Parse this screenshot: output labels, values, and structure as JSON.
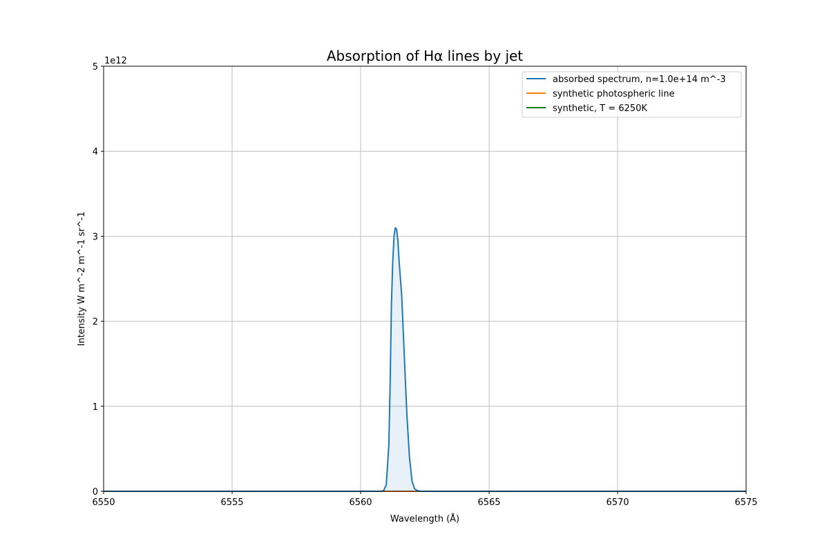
{
  "chart_data": {
    "type": "line",
    "title": "Absorption of Hα lines by jet",
    "xlabel": "Wavelength (Å)",
    "ylabel": "Intensity W m^-2 m^-1 sr^-1",
    "y_offset_text": "1e12",
    "xlim": [
      6550,
      6575
    ],
    "ylim": [
      0,
      5
    ],
    "y_scale_factor": 1000000000000.0,
    "x_ticks": [
      6550,
      6555,
      6560,
      6565,
      6570,
      6575
    ],
    "y_ticks": [
      0,
      1,
      2,
      3,
      4,
      5
    ],
    "grid": true,
    "legend_placement": "top-right",
    "series": [
      {
        "name": "absorbed spectrum, n=1.0e+14 m^-3",
        "color": "#1f77b4",
        "fill": true,
        "x": [
          6550,
          6560.8,
          6560.9,
          6561.0,
          6561.1,
          6561.15,
          6561.2,
          6561.25,
          6561.3,
          6561.35,
          6561.4,
          6561.45,
          6561.5,
          6561.6,
          6561.7,
          6561.8,
          6561.9,
          6562.0,
          6562.1,
          6562.2,
          6562.3,
          6575
        ],
        "y": [
          0,
          0,
          0.01,
          0.08,
          0.55,
          1.3,
          2.2,
          2.7,
          3.0,
          3.1,
          3.08,
          2.95,
          2.7,
          2.3,
          1.6,
          0.9,
          0.4,
          0.12,
          0.03,
          0.01,
          0,
          0
        ]
      },
      {
        "name": "synthetic photospheric line",
        "color": "#ff7f0e",
        "fill": false,
        "x": [
          6550,
          6575
        ],
        "y": [
          0,
          0
        ]
      },
      {
        "name": "synthetic, T = 6250K",
        "color": "#008000",
        "fill": false,
        "x": [
          6550,
          6575
        ],
        "y": [
          0,
          0
        ]
      }
    ]
  }
}
